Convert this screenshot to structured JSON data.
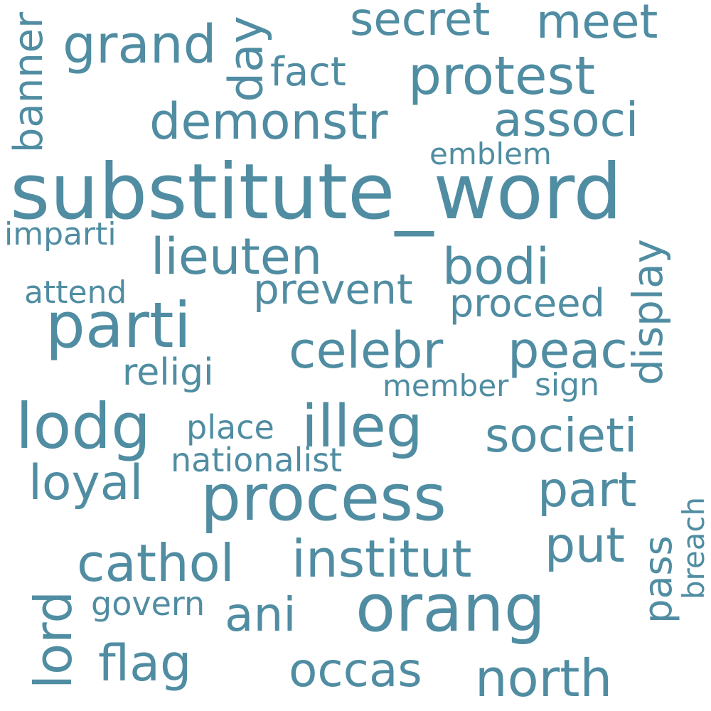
{
  "colors": {
    "background": "#ffffff",
    "word": "#508da2"
  },
  "words": [
    {
      "text": "substitute_word"
    },
    {
      "text": "parti"
    },
    {
      "text": "process"
    },
    {
      "text": "orang"
    },
    {
      "text": "lodg"
    },
    {
      "text": "protest"
    },
    {
      "text": "demonstr"
    },
    {
      "text": "grand"
    },
    {
      "text": "secret"
    },
    {
      "text": "meet"
    },
    {
      "text": "day"
    },
    {
      "text": "fact"
    },
    {
      "text": "banner"
    },
    {
      "text": "associ"
    },
    {
      "text": "emblem"
    },
    {
      "text": "imparti"
    },
    {
      "text": "lieuten"
    },
    {
      "text": "bodi"
    },
    {
      "text": "display"
    },
    {
      "text": "attend"
    },
    {
      "text": "prevent"
    },
    {
      "text": "proceed"
    },
    {
      "text": "celebr"
    },
    {
      "text": "peac"
    },
    {
      "text": "religi"
    },
    {
      "text": "member"
    },
    {
      "text": "sign"
    },
    {
      "text": "illeg"
    },
    {
      "text": "place"
    },
    {
      "text": "societi"
    },
    {
      "text": "nationalist"
    },
    {
      "text": "loyal"
    },
    {
      "text": "part"
    },
    {
      "text": "breach"
    },
    {
      "text": "cathol"
    },
    {
      "text": "institut"
    },
    {
      "text": "put"
    },
    {
      "text": "pass"
    },
    {
      "text": "lord"
    },
    {
      "text": "govern"
    },
    {
      "text": "ani"
    },
    {
      "text": "flag"
    },
    {
      "text": "occas"
    },
    {
      "text": "north"
    }
  ]
}
